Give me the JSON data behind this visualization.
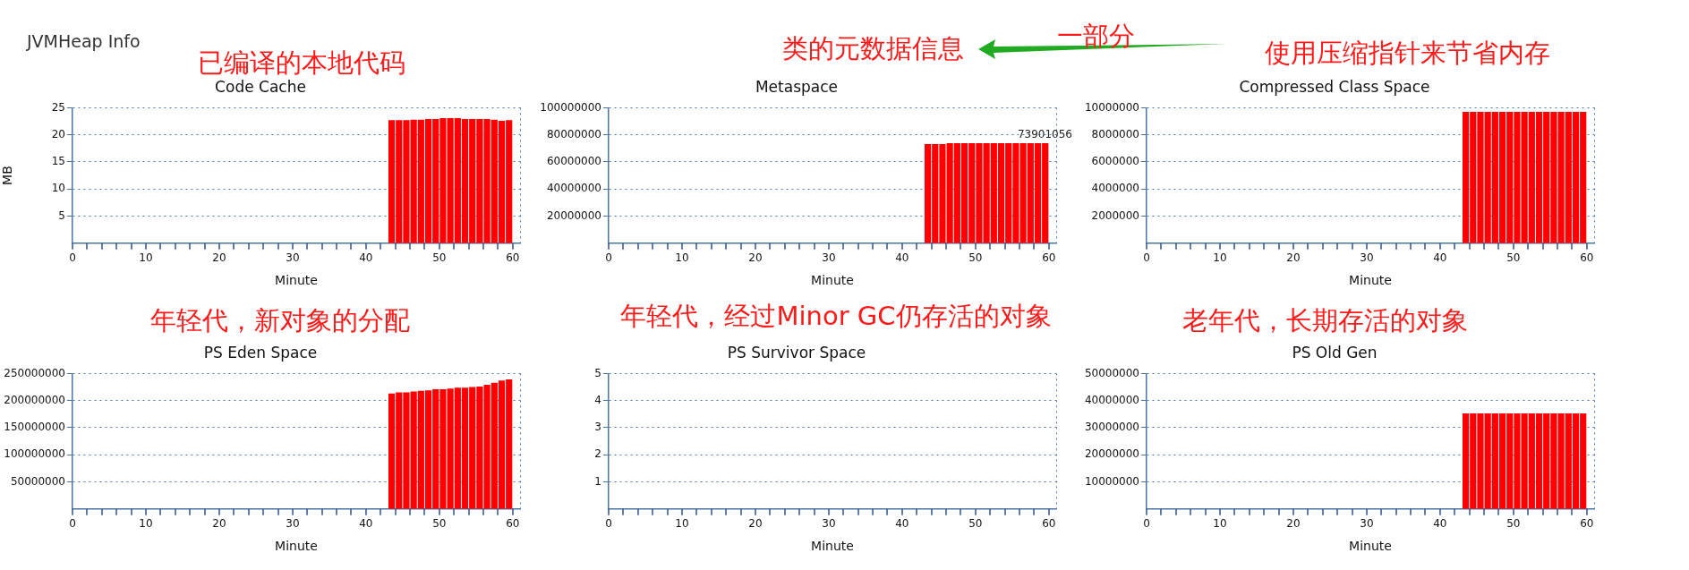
{
  "chart_data": [
    {
      "type": "bar",
      "title": "Code Cache",
      "xlabel": "Minute",
      "ylabel": "MB",
      "annotations": [
        "JVMHeap Info",
        "已编译的本地代码"
      ],
      "color": "#ff0000",
      "grid": "y",
      "legend": false,
      "x": [
        43.5,
        44.5,
        45.5,
        46.5,
        47.5,
        48.5,
        49.5,
        50.5,
        51.5,
        52.5,
        53.5,
        54.5,
        55.5,
        56.5,
        57.5,
        58.5,
        59.5
      ],
      "values": [
        22.7,
        22.7,
        22.7,
        22.8,
        22.8,
        22.9,
        22.9,
        23.1,
        23.1,
        23.1,
        22.9,
        22.9,
        22.9,
        22.9,
        22.8,
        22.6,
        22.7
      ],
      "xlim": [
        0,
        61
      ],
      "xticks": [
        0,
        {
          "value": 2,
          "label": null
        },
        {
          "value": 4,
          "label": null
        },
        {
          "value": 6,
          "label": null
        },
        {
          "value": 8,
          "label": null
        },
        10,
        {
          "value": 12,
          "label": null
        },
        {
          "value": 14,
          "label": null
        },
        {
          "value": 16,
          "label": null
        },
        {
          "value": 18,
          "label": null
        },
        20,
        {
          "value": 22,
          "label": null
        },
        {
          "value": 24,
          "label": null
        },
        {
          "value": 26,
          "label": null
        },
        {
          "value": 28,
          "label": null
        },
        30,
        {
          "value": 32,
          "label": null
        },
        {
          "value": 34,
          "label": null
        },
        {
          "value": 36,
          "label": null
        },
        {
          "value": 38,
          "label": null
        },
        40,
        {
          "value": 42,
          "label": null
        },
        {
          "value": 44,
          "label": null
        },
        {
          "value": 46,
          "label": null
        },
        {
          "value": 48,
          "label": null
        },
        50,
        {
          "value": 52,
          "label": null
        },
        {
          "value": 54,
          "label": null
        },
        {
          "value": 56,
          "label": null
        },
        {
          "value": 58,
          "label": null
        },
        60
      ],
      "ylim": [
        0,
        25
      ],
      "yticks": [
        5,
        10,
        15,
        20,
        25
      ]
    },
    {
      "type": "bar",
      "title": "Metaspace",
      "xlabel": "Minute",
      "annotations": [
        "类的元数据信息"
      ],
      "color": "#ff0000",
      "grid": "y",
      "legend": false,
      "x": [
        43.5,
        44.5,
        45.5,
        46.5,
        47.5,
        48.5,
        49.5,
        50.5,
        51.5,
        52.5,
        53.5,
        54.5,
        55.5,
        56.5,
        57.5,
        58.5,
        59.5
      ],
      "values": [
        73200000,
        73200000,
        73200000,
        73900000,
        73900000,
        73900000,
        73900000,
        73900000,
        73900000,
        73900000,
        73900000,
        73900000,
        73900000,
        73900000,
        73900000,
        73900000,
        73901056
      ],
      "value_labels": [
        null,
        null,
        null,
        null,
        null,
        null,
        null,
        null,
        null,
        null,
        null,
        null,
        null,
        null,
        null,
        null,
        "73901056"
      ],
      "xlim": [
        0,
        61
      ],
      "xticks": [
        0,
        {
          "value": 2,
          "label": null
        },
        {
          "value": 4,
          "label": null
        },
        {
          "value": 6,
          "label": null
        },
        {
          "value": 8,
          "label": null
        },
        10,
        {
          "value": 12,
          "label": null
        },
        {
          "value": 14,
          "label": null
        },
        {
          "value": 16,
          "label": null
        },
        {
          "value": 18,
          "label": null
        },
        20,
        {
          "value": 22,
          "label": null
        },
        {
          "value": 24,
          "label": null
        },
        {
          "value": 26,
          "label": null
        },
        {
          "value": 28,
          "label": null
        },
        30,
        {
          "value": 32,
          "label": null
        },
        {
          "value": 34,
          "label": null
        },
        {
          "value": 36,
          "label": null
        },
        {
          "value": 38,
          "label": null
        },
        40,
        {
          "value": 42,
          "label": null
        },
        {
          "value": 44,
          "label": null
        },
        {
          "value": 46,
          "label": null
        },
        {
          "value": 48,
          "label": null
        },
        50,
        {
          "value": 52,
          "label": null
        },
        {
          "value": 54,
          "label": null
        },
        {
          "value": 56,
          "label": null
        },
        {
          "value": 58,
          "label": null
        },
        60
      ],
      "ylim": [
        0,
        100000000
      ],
      "yticks": [
        20000000,
        40000000,
        60000000,
        80000000,
        100000000
      ]
    },
    {
      "type": "bar",
      "title": "Compressed Class Space",
      "xlabel": "Minute",
      "annotations": [
        "使用压缩指针来节省内存",
        "一部分"
      ],
      "color": "#ff0000",
      "grid": "y",
      "legend": false,
      "x": [
        43.5,
        44.5,
        45.5,
        46.5,
        47.5,
        48.5,
        49.5,
        50.5,
        51.5,
        52.5,
        53.5,
        54.5,
        55.5,
        56.5,
        57.5,
        58.5,
        59.5
      ],
      "values": [
        9700000,
        9700000,
        9700000,
        9700000,
        9700000,
        9700000,
        9700000,
        9700000,
        9700000,
        9700000,
        9700000,
        9700000,
        9700000,
        9700000,
        9700000,
        9700000,
        9700000
      ],
      "xlim": [
        0,
        61
      ],
      "xticks": [
        0,
        {
          "value": 2,
          "label": null
        },
        {
          "value": 4,
          "label": null
        },
        {
          "value": 6,
          "label": null
        },
        {
          "value": 8,
          "label": null
        },
        10,
        {
          "value": 12,
          "label": null
        },
        {
          "value": 14,
          "label": null
        },
        {
          "value": 16,
          "label": null
        },
        {
          "value": 18,
          "label": null
        },
        20,
        {
          "value": 22,
          "label": null
        },
        {
          "value": 24,
          "label": null
        },
        {
          "value": 26,
          "label": null
        },
        {
          "value": 28,
          "label": null
        },
        30,
        {
          "value": 32,
          "label": null
        },
        {
          "value": 34,
          "label": null
        },
        {
          "value": 36,
          "label": null
        },
        {
          "value": 38,
          "label": null
        },
        40,
        {
          "value": 42,
          "label": null
        },
        {
          "value": 44,
          "label": null
        },
        {
          "value": 46,
          "label": null
        },
        {
          "value": 48,
          "label": null
        },
        50,
        {
          "value": 52,
          "label": null
        },
        {
          "value": 54,
          "label": null
        },
        {
          "value": 56,
          "label": null
        },
        {
          "value": 58,
          "label": null
        },
        60
      ],
      "ylim": [
        0,
        10000000
      ],
      "yticks": [
        2000000,
        4000000,
        6000000,
        8000000,
        10000000
      ]
    },
    {
      "type": "bar",
      "title": "PS Eden Space",
      "xlabel": "Minute",
      "annotations": [
        "年轻代，新对象的分配"
      ],
      "color": "#ff0000",
      "grid": "y",
      "legend": false,
      "x": [
        43.5,
        44.5,
        45.5,
        46.5,
        47.5,
        48.5,
        49.5,
        50.5,
        51.5,
        52.5,
        53.5,
        54.5,
        55.5,
        56.5,
        57.5,
        58.5,
        59.5
      ],
      "values": [
        213000000,
        215000000,
        215000000,
        217000000,
        218000000,
        219000000,
        221000000,
        221000000,
        222000000,
        224000000,
        224000000,
        225000000,
        226000000,
        229000000,
        233000000,
        237000000,
        239000000
      ],
      "xlim": [
        0,
        61
      ],
      "xticks": [
        0,
        {
          "value": 2,
          "label": null
        },
        {
          "value": 4,
          "label": null
        },
        {
          "value": 6,
          "label": null
        },
        {
          "value": 8,
          "label": null
        },
        10,
        {
          "value": 12,
          "label": null
        },
        {
          "value": 14,
          "label": null
        },
        {
          "value": 16,
          "label": null
        },
        {
          "value": 18,
          "label": null
        },
        20,
        {
          "value": 22,
          "label": null
        },
        {
          "value": 24,
          "label": null
        },
        {
          "value": 26,
          "label": null
        },
        {
          "value": 28,
          "label": null
        },
        30,
        {
          "value": 32,
          "label": null
        },
        {
          "value": 34,
          "label": null
        },
        {
          "value": 36,
          "label": null
        },
        {
          "value": 38,
          "label": null
        },
        40,
        {
          "value": 42,
          "label": null
        },
        {
          "value": 44,
          "label": null
        },
        {
          "value": 46,
          "label": null
        },
        {
          "value": 48,
          "label": null
        },
        50,
        {
          "value": 52,
          "label": null
        },
        {
          "value": 54,
          "label": null
        },
        {
          "value": 56,
          "label": null
        },
        {
          "value": 58,
          "label": null
        },
        60
      ],
      "ylim": [
        0,
        250000000
      ],
      "yticks": [
        50000000,
        100000000,
        150000000,
        200000000,
        250000000
      ]
    },
    {
      "type": "bar",
      "title": "PS Survivor Space",
      "xlabel": "Minute",
      "annotations": [
        "年轻代，经过Minor GC仍存活的对象"
      ],
      "color": "#ff0000",
      "grid": "y",
      "legend": false,
      "x": [
        43.5,
        44.5,
        45.5,
        46.5,
        47.5,
        48.5,
        49.5,
        50.5,
        51.5,
        52.5,
        53.5,
        54.5,
        55.5,
        56.5,
        57.5,
        58.5,
        59.5
      ],
      "values": [
        0,
        0,
        0,
        0,
        0,
        0,
        0,
        0,
        0,
        0,
        0,
        0,
        0,
        0,
        0,
        0,
        0
      ],
      "xlim": [
        0,
        61
      ],
      "xticks": [
        0,
        {
          "value": 2,
          "label": null
        },
        {
          "value": 4,
          "label": null
        },
        {
          "value": 6,
          "label": null
        },
        {
          "value": 8,
          "label": null
        },
        10,
        {
          "value": 12,
          "label": null
        },
        {
          "value": 14,
          "label": null
        },
        {
          "value": 16,
          "label": null
        },
        {
          "value": 18,
          "label": null
        },
        20,
        {
          "value": 22,
          "label": null
        },
        {
          "value": 24,
          "label": null
        },
        {
          "value": 26,
          "label": null
        },
        {
          "value": 28,
          "label": null
        },
        30,
        {
          "value": 32,
          "label": null
        },
        {
          "value": 34,
          "label": null
        },
        {
          "value": 36,
          "label": null
        },
        {
          "value": 38,
          "label": null
        },
        40,
        {
          "value": 42,
          "label": null
        },
        {
          "value": 44,
          "label": null
        },
        {
          "value": 46,
          "label": null
        },
        {
          "value": 48,
          "label": null
        },
        50,
        {
          "value": 52,
          "label": null
        },
        {
          "value": 54,
          "label": null
        },
        {
          "value": 56,
          "label": null
        },
        {
          "value": 58,
          "label": null
        },
        60
      ],
      "ylim": [
        0,
        5
      ],
      "yticks": [
        1,
        2,
        3,
        4,
        5
      ]
    },
    {
      "type": "bar",
      "title": "PS Old Gen",
      "xlabel": "Minute",
      "annotations": [
        "老年代，长期存活的对象"
      ],
      "color": "#ff0000",
      "grid": "y",
      "legend": false,
      "x": [
        43.5,
        44.5,
        45.5,
        46.5,
        47.5,
        48.5,
        49.5,
        50.5,
        51.5,
        52.5,
        53.5,
        54.5,
        55.5,
        56.5,
        57.5,
        58.5,
        59.5
      ],
      "values": [
        35300000,
        35300000,
        35300000,
        35300000,
        35300000,
        35300000,
        35300000,
        35300000,
        35300000,
        35300000,
        35300000,
        35300000,
        35300000,
        35300000,
        35300000,
        35300000,
        35300000
      ],
      "xlim": [
        0,
        61
      ],
      "xticks": [
        0,
        {
          "value": 2,
          "label": null
        },
        {
          "value": 4,
          "label": null
        },
        {
          "value": 6,
          "label": null
        },
        {
          "value": 8,
          "label": null
        },
        10,
        {
          "value": 12,
          "label": null
        },
        {
          "value": 14,
          "label": null
        },
        {
          "value": 16,
          "label": null
        },
        {
          "value": 18,
          "label": null
        },
        20,
        {
          "value": 22,
          "label": null
        },
        {
          "value": 24,
          "label": null
        },
        {
          "value": 26,
          "label": null
        },
        {
          "value": 28,
          "label": null
        },
        30,
        {
          "value": 32,
          "label": null
        },
        {
          "value": 34,
          "label": null
        },
        {
          "value": 36,
          "label": null
        },
        {
          "value": 38,
          "label": null
        },
        40,
        {
          "value": 42,
          "label": null
        },
        {
          "value": 44,
          "label": null
        },
        {
          "value": 46,
          "label": null
        },
        {
          "value": 48,
          "label": null
        },
        50,
        {
          "value": 52,
          "label": null
        },
        {
          "value": 54,
          "label": null
        },
        {
          "value": 56,
          "label": null
        },
        {
          "value": 58,
          "label": null
        },
        60
      ],
      "ylim": [
        0,
        50000000
      ],
      "yticks": [
        10000000,
        20000000,
        30000000,
        40000000,
        50000000
      ]
    }
  ]
}
